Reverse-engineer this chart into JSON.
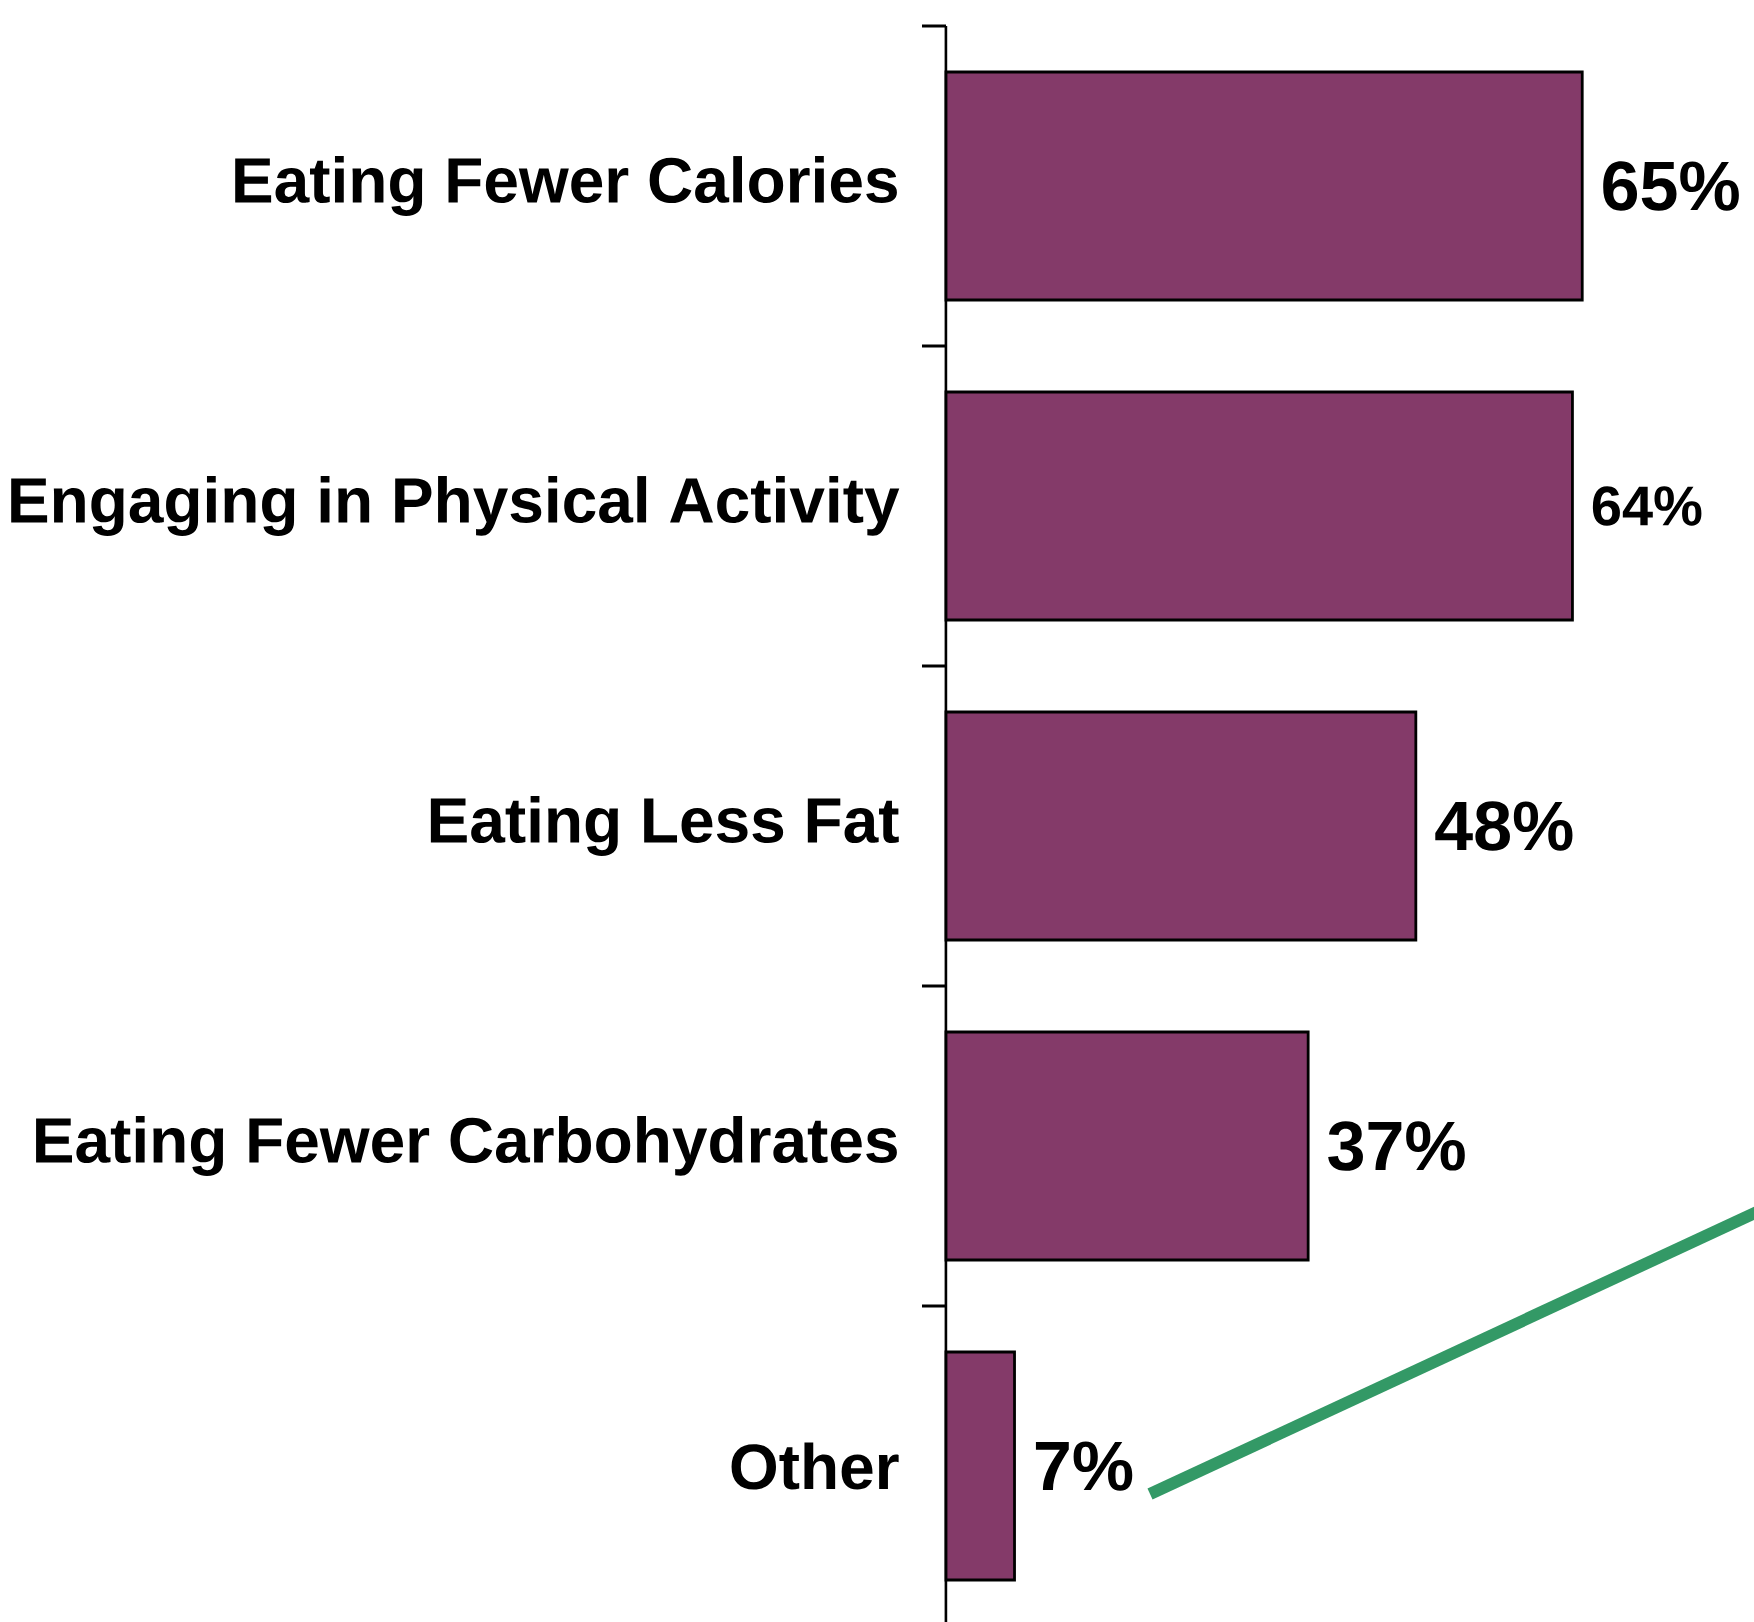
{
  "chart_data": {
    "type": "bar",
    "orientation": "horizontal",
    "categories": [
      "Eating Fewer Calories",
      "Engaging in Physical Activity",
      "Eating Less Fat",
      "Eating Fewer Carbohydrates",
      "Other"
    ],
    "values": [
      65,
      64,
      48,
      37,
      7
    ],
    "value_labels": [
      "65%",
      "64%",
      "48%",
      "37%",
      "7%"
    ],
    "color": "#843a69",
    "tick_labels": "y"
  }
}
